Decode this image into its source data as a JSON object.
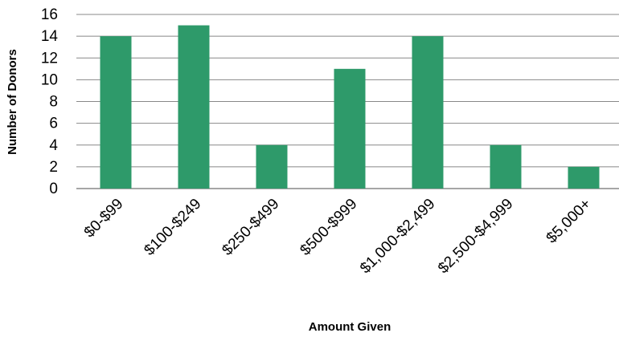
{
  "chart_data": {
    "type": "bar",
    "categories": [
      "$0-$99",
      "$100-$249",
      "$250-$499",
      "$500-$999",
      "$1,000-$2,499",
      "$2,500-$4,999",
      "$5,000+"
    ],
    "values": [
      14,
      15,
      4,
      11,
      14,
      4,
      2
    ],
    "xlabel": "Amount Given",
    "ylabel": "Number of Donors",
    "ylim": [
      0,
      16
    ],
    "yticks": [
      0,
      2,
      4,
      6,
      8,
      10,
      12,
      14,
      16
    ],
    "grid": true,
    "legend": "none",
    "bar_color": "#2e9a6a",
    "grid_color": "#888888"
  }
}
